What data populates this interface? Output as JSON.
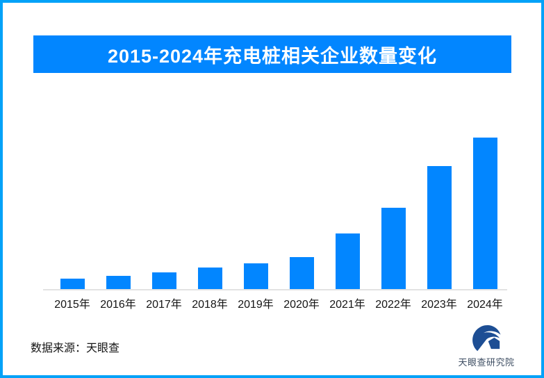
{
  "page": {
    "border_color": "#03A2F8",
    "background_color": "#FFFFFF"
  },
  "header": {
    "title": "2015-2024年充电桩相关企业数量变化",
    "background": "#0286FF",
    "text_color": "#FFFFFF"
  },
  "chart_data": {
    "type": "bar",
    "title": "2015-2024年充电桩相关企业数量变化",
    "categories": [
      "2015年",
      "2016年",
      "2017年",
      "2018年",
      "2019年",
      "2020年",
      "2021年",
      "2022年",
      "2023年",
      "2024年"
    ],
    "values": [
      6.9,
      8.7,
      11.0,
      14.2,
      17.0,
      21.1,
      36.7,
      53.7,
      81.2,
      100
    ],
    "unit": "relative height, max = 100 (no numeric axis or data labels shown)",
    "xlabel": "",
    "ylabel": "",
    "ylim": [
      0,
      100
    ],
    "grid": false,
    "legend": false,
    "value_labels_shown": false,
    "bar_color": "#0286FF",
    "axis_line_color": "#E2E2E2",
    "tick_label_color": "#141414"
  },
  "footer": {
    "source_label": "数据来源：天眼查",
    "logo_text": "天眼查研究院",
    "logo_icon": "tianyancha-eye-swoosh-icon",
    "logo_icon_color": "#1D4E94",
    "logo_text_color": "#3D4D62"
  }
}
